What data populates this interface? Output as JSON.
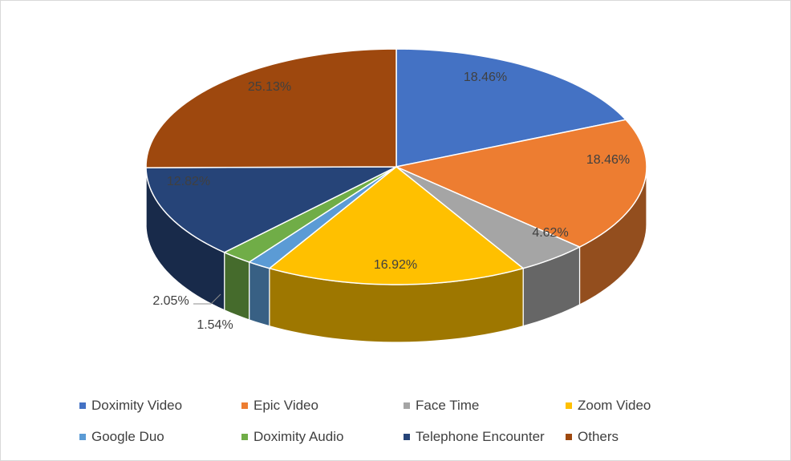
{
  "chart_data": {
    "type": "pie",
    "style": "3d",
    "start": "12 o'clock, clockwise",
    "legend_position": "bottom",
    "categories": [
      "Doximity Video",
      "Epic Video",
      "Face Time",
      "Zoom Video",
      "Google Duo",
      "Doximity Audio",
      "Telephone Encounter",
      "Others"
    ],
    "values": [
      18.46,
      18.46,
      4.62,
      16.92,
      1.54,
      2.05,
      12.82,
      25.13
    ],
    "labels": [
      "18.46%",
      "18.46%",
      "4.62%",
      "16.92%",
      "1.54%",
      "2.05%",
      "12.82%",
      "25.13%"
    ],
    "colors": [
      "#4472C4",
      "#ED7D31",
      "#A5A5A5",
      "#FFC000",
      "#5B9BD5",
      "#70AD47",
      "#264478",
      "#9E480E"
    ]
  }
}
